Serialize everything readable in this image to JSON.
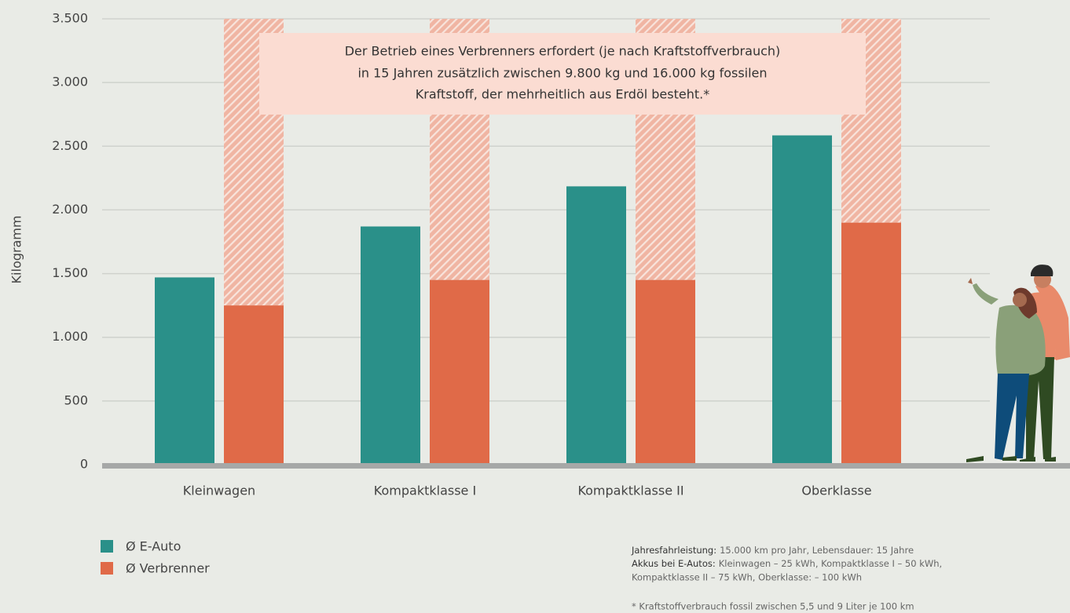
{
  "chart_data": {
    "type": "bar",
    "ylabel": "Kilogramm",
    "categories": [
      "Kleinwagen",
      "Kompaktklasse I",
      "Kompaktklasse II",
      "Oberklasse"
    ],
    "series": [
      {
        "name": "Ø E-Auto",
        "color": "#2a9089",
        "values": [
          1470,
          1870,
          2185,
          2585
        ]
      },
      {
        "name": "Ø Verbrenner",
        "color": "#e06a48",
        "values": [
          1250,
          1450,
          1450,
          1900
        ]
      }
    ],
    "ylim": [
      0,
      3500
    ],
    "yticks": [
      0,
      500,
      {
        "value": 1000,
        "label": "1.000"
      },
      {
        "value": 1500,
        "label": "1.500"
      },
      {
        "value": 2000,
        "label": "2.000"
      },
      {
        "value": 2500,
        "label": "2.500"
      },
      {
        "value": 3000,
        "label": "3.000"
      },
      {
        "value": 3500,
        "label": "3.500"
      }
    ],
    "grid": true,
    "annotation": [
      "Der Betrieb eines Verbrenners erfordert (je nach Kraftstoffverbrauch)",
      "in 15 Jahren zusätzlich zwischen 9.800 kg und 16.000 kg fossilen",
      "Kraftstoff, der mehrheitlich aus Erdöl besteht.*"
    ],
    "notes": [
      {
        "label": "Jahresfahrleistung:",
        "text": "15.000 km pro Jahr, Lebensdauer: 15 Jahre"
      },
      {
        "label": "Akkus bei E-Autos:",
        "text": "Kleinwagen – 25 kWh, Kompaktklasse I – 50 kWh,"
      },
      {
        "text": "Kompaktklasse II – 75 kWh, Oberklasse: – 100 kWh"
      }
    ],
    "footnote": "* Kraftstoffverbrauch fossil zwischen 5,5 und 9 Liter je 100 km"
  }
}
